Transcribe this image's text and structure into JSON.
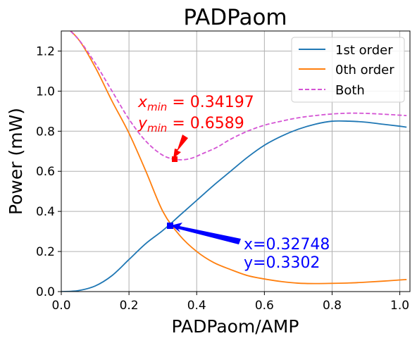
{
  "chart_data": {
    "type": "line",
    "title": "PADPaom",
    "xlabel": "PADPaom/AMP",
    "ylabel": "Power (mW)",
    "xlim": [
      0.0,
      1.03
    ],
    "ylim": [
      0.0,
      1.3
    ],
    "xticks": [
      "0.0",
      "0.2",
      "0.4",
      "0.6",
      "0.8",
      "1.0"
    ],
    "xtick_values": [
      0.0,
      0.2,
      0.4,
      0.6,
      0.8,
      1.0
    ],
    "yticks": [
      "0.0",
      "0.2",
      "0.4",
      "0.6",
      "0.8",
      "1.0",
      "1.2"
    ],
    "ytick_values": [
      0.0,
      0.2,
      0.4,
      0.6,
      0.8,
      1.0,
      1.2
    ],
    "grid": true,
    "legend_position": "top-right",
    "series": [
      {
        "name": "1st order",
        "color": "#1f77b4",
        "style": "solid",
        "x": [
          0.0,
          0.05,
          0.1,
          0.15,
          0.2,
          0.25,
          0.3,
          0.35,
          0.4,
          0.45,
          0.5,
          0.55,
          0.6,
          0.65,
          0.7,
          0.75,
          0.8,
          0.85,
          0.9,
          0.95,
          1.0,
          1.02
        ],
        "y": [
          0.0,
          0.005,
          0.028,
          0.08,
          0.16,
          0.24,
          0.305,
          0.38,
          0.455,
          0.53,
          0.6,
          0.67,
          0.73,
          0.775,
          0.81,
          0.835,
          0.85,
          0.85,
          0.845,
          0.835,
          0.825,
          0.82
        ]
      },
      {
        "name": "0th order",
        "color": "#ff7f0e",
        "style": "solid",
        "x": [
          0.0,
          0.05,
          0.1,
          0.15,
          0.2,
          0.25,
          0.3,
          0.35,
          0.4,
          0.45,
          0.5,
          0.55,
          0.6,
          0.65,
          0.7,
          0.75,
          0.8,
          0.85,
          0.9,
          0.95,
          1.0,
          1.02
        ],
        "y": [
          1.34,
          1.26,
          1.12,
          0.95,
          0.79,
          0.6,
          0.4,
          0.28,
          0.2,
          0.145,
          0.11,
          0.08,
          0.063,
          0.05,
          0.042,
          0.04,
          0.041,
          0.043,
          0.047,
          0.052,
          0.058,
          0.06
        ]
      },
      {
        "name": "Both",
        "color": "#d454d4",
        "style": "dashed",
        "x": [
          0.0,
          0.05,
          0.1,
          0.15,
          0.2,
          0.25,
          0.3,
          0.34197,
          0.38,
          0.42,
          0.46,
          0.5,
          0.55,
          0.6,
          0.65,
          0.7,
          0.75,
          0.8,
          0.85,
          0.9,
          0.95,
          1.0,
          1.02
        ],
        "y": [
          1.34,
          1.26,
          1.14,
          1.0,
          0.86,
          0.75,
          0.68,
          0.6589,
          0.663,
          0.69,
          0.72,
          0.76,
          0.8,
          0.83,
          0.85,
          0.867,
          0.878,
          0.886,
          0.89,
          0.889,
          0.885,
          0.88,
          0.878
        ]
      }
    ],
    "annotations": [
      {
        "label_x": "x",
        "label_sub_x": "min",
        "value_x": " = 0.34197",
        "label_y": "y",
        "label_sub_y": "min",
        "value_y": " = 0.6589",
        "color": "#ff0000",
        "point": [
          0.34197,
          0.6589
        ],
        "text_at": [
          0.235,
          0.885
        ]
      },
      {
        "line1": "x=0.32748",
        "line2": "y=0.3302",
        "color": "#0000ff",
        "point": [
          0.32748,
          0.3302
        ],
        "text_at": [
          0.555,
          0.2
        ]
      }
    ]
  }
}
